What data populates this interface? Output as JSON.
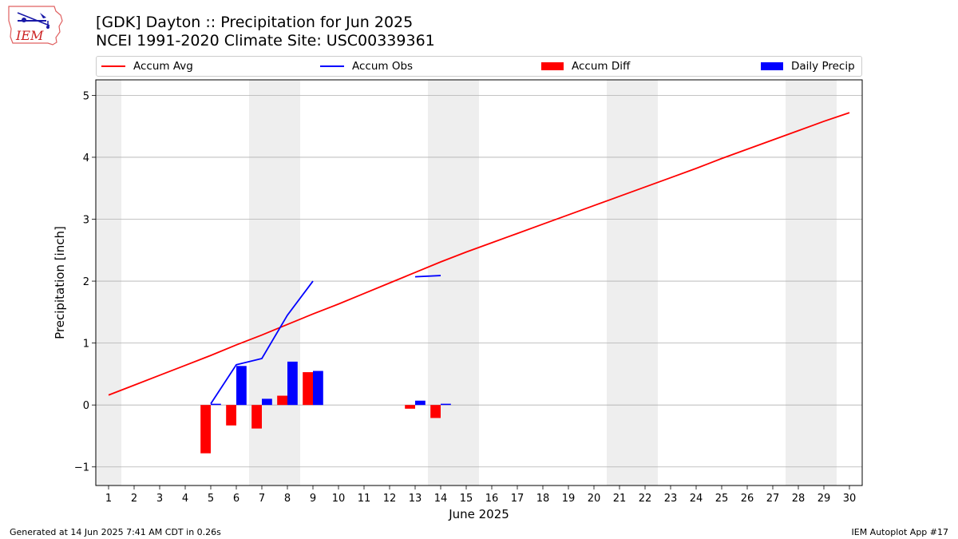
{
  "header": {
    "title_line1": "[GDK] Dayton :: Precipitation for Jun 2025",
    "title_line2": "NCEI 1991-2020 Climate Site: USC00339361",
    "logo_text": "IEM"
  },
  "footer": {
    "generated": "Generated at 14 Jun 2025 7:41 AM CDT in 0.26s",
    "app": "IEM Autoplot App #17"
  },
  "colors": {
    "avg": "#ff0000",
    "obs": "#0000ff",
    "diff": "#ff0000",
    "daily": "#0000ff",
    "weekend_band": "#eeeeee",
    "grid": "#b0b0b0"
  },
  "chart_data": {
    "type": "bar",
    "xlabel": "June 2025",
    "ylabel": "Precipitation [inch]",
    "xlim": [
      0.5,
      30.5
    ],
    "ylim": [
      -1.3,
      5.25
    ],
    "x_ticks": [
      1,
      2,
      3,
      4,
      5,
      6,
      7,
      8,
      9,
      10,
      11,
      12,
      13,
      14,
      15,
      16,
      17,
      18,
      19,
      20,
      21,
      22,
      23,
      24,
      25,
      26,
      27,
      28,
      29,
      30
    ],
    "y_ticks": [
      -1,
      0,
      1,
      2,
      3,
      4,
      5
    ],
    "y_tick_labels": [
      "−1",
      "0",
      "1",
      "2",
      "3",
      "4",
      "5"
    ],
    "grid": "horizontal",
    "legend_position": "top",
    "weekend_bands": [
      [
        0.5,
        1.5
      ],
      [
        6.5,
        8.5
      ],
      [
        13.5,
        15.5
      ],
      [
        20.5,
        22.5
      ],
      [
        27.5,
        29.5
      ]
    ],
    "series": [
      {
        "name": "Accum Avg",
        "kind": "line",
        "x": [
          1,
          2,
          3,
          4,
          5,
          6,
          7,
          8,
          9,
          10,
          11,
          12,
          13,
          14,
          15,
          16,
          17,
          18,
          19,
          20,
          21,
          22,
          23,
          24,
          25,
          26,
          27,
          28,
          29,
          30
        ],
        "values": [
          0.16,
          0.32,
          0.48,
          0.64,
          0.8,
          0.97,
          1.13,
          1.3,
          1.47,
          1.63,
          1.8,
          1.97,
          2.14,
          2.31,
          2.47,
          2.62,
          2.77,
          2.92,
          3.07,
          3.22,
          3.37,
          3.52,
          3.67,
          3.82,
          3.98,
          4.13,
          4.28,
          4.43,
          4.58,
          4.72
        ]
      },
      {
        "name": "Accum Obs",
        "kind": "line",
        "segments": [
          {
            "x": [
              5,
              6,
              7,
              8,
              9
            ],
            "values": [
              0.02,
              0.65,
              0.75,
              1.45,
              2.0
            ]
          },
          {
            "x": [
              13,
              14
            ],
            "values": [
              2.07,
              2.09
            ]
          }
        ]
      },
      {
        "name": "Accum Diff",
        "kind": "bar",
        "x": [
          5,
          6,
          7,
          8,
          9,
          13,
          14
        ],
        "values": [
          -0.78,
          -0.33,
          -0.38,
          0.15,
          0.53,
          -0.06,
          -0.21
        ]
      },
      {
        "name": "Daily Precip",
        "kind": "bar",
        "x": [
          5,
          6,
          7,
          8,
          9,
          13,
          14
        ],
        "values": [
          0.02,
          0.63,
          0.1,
          0.7,
          0.55,
          0.07,
          0.02
        ]
      }
    ]
  }
}
